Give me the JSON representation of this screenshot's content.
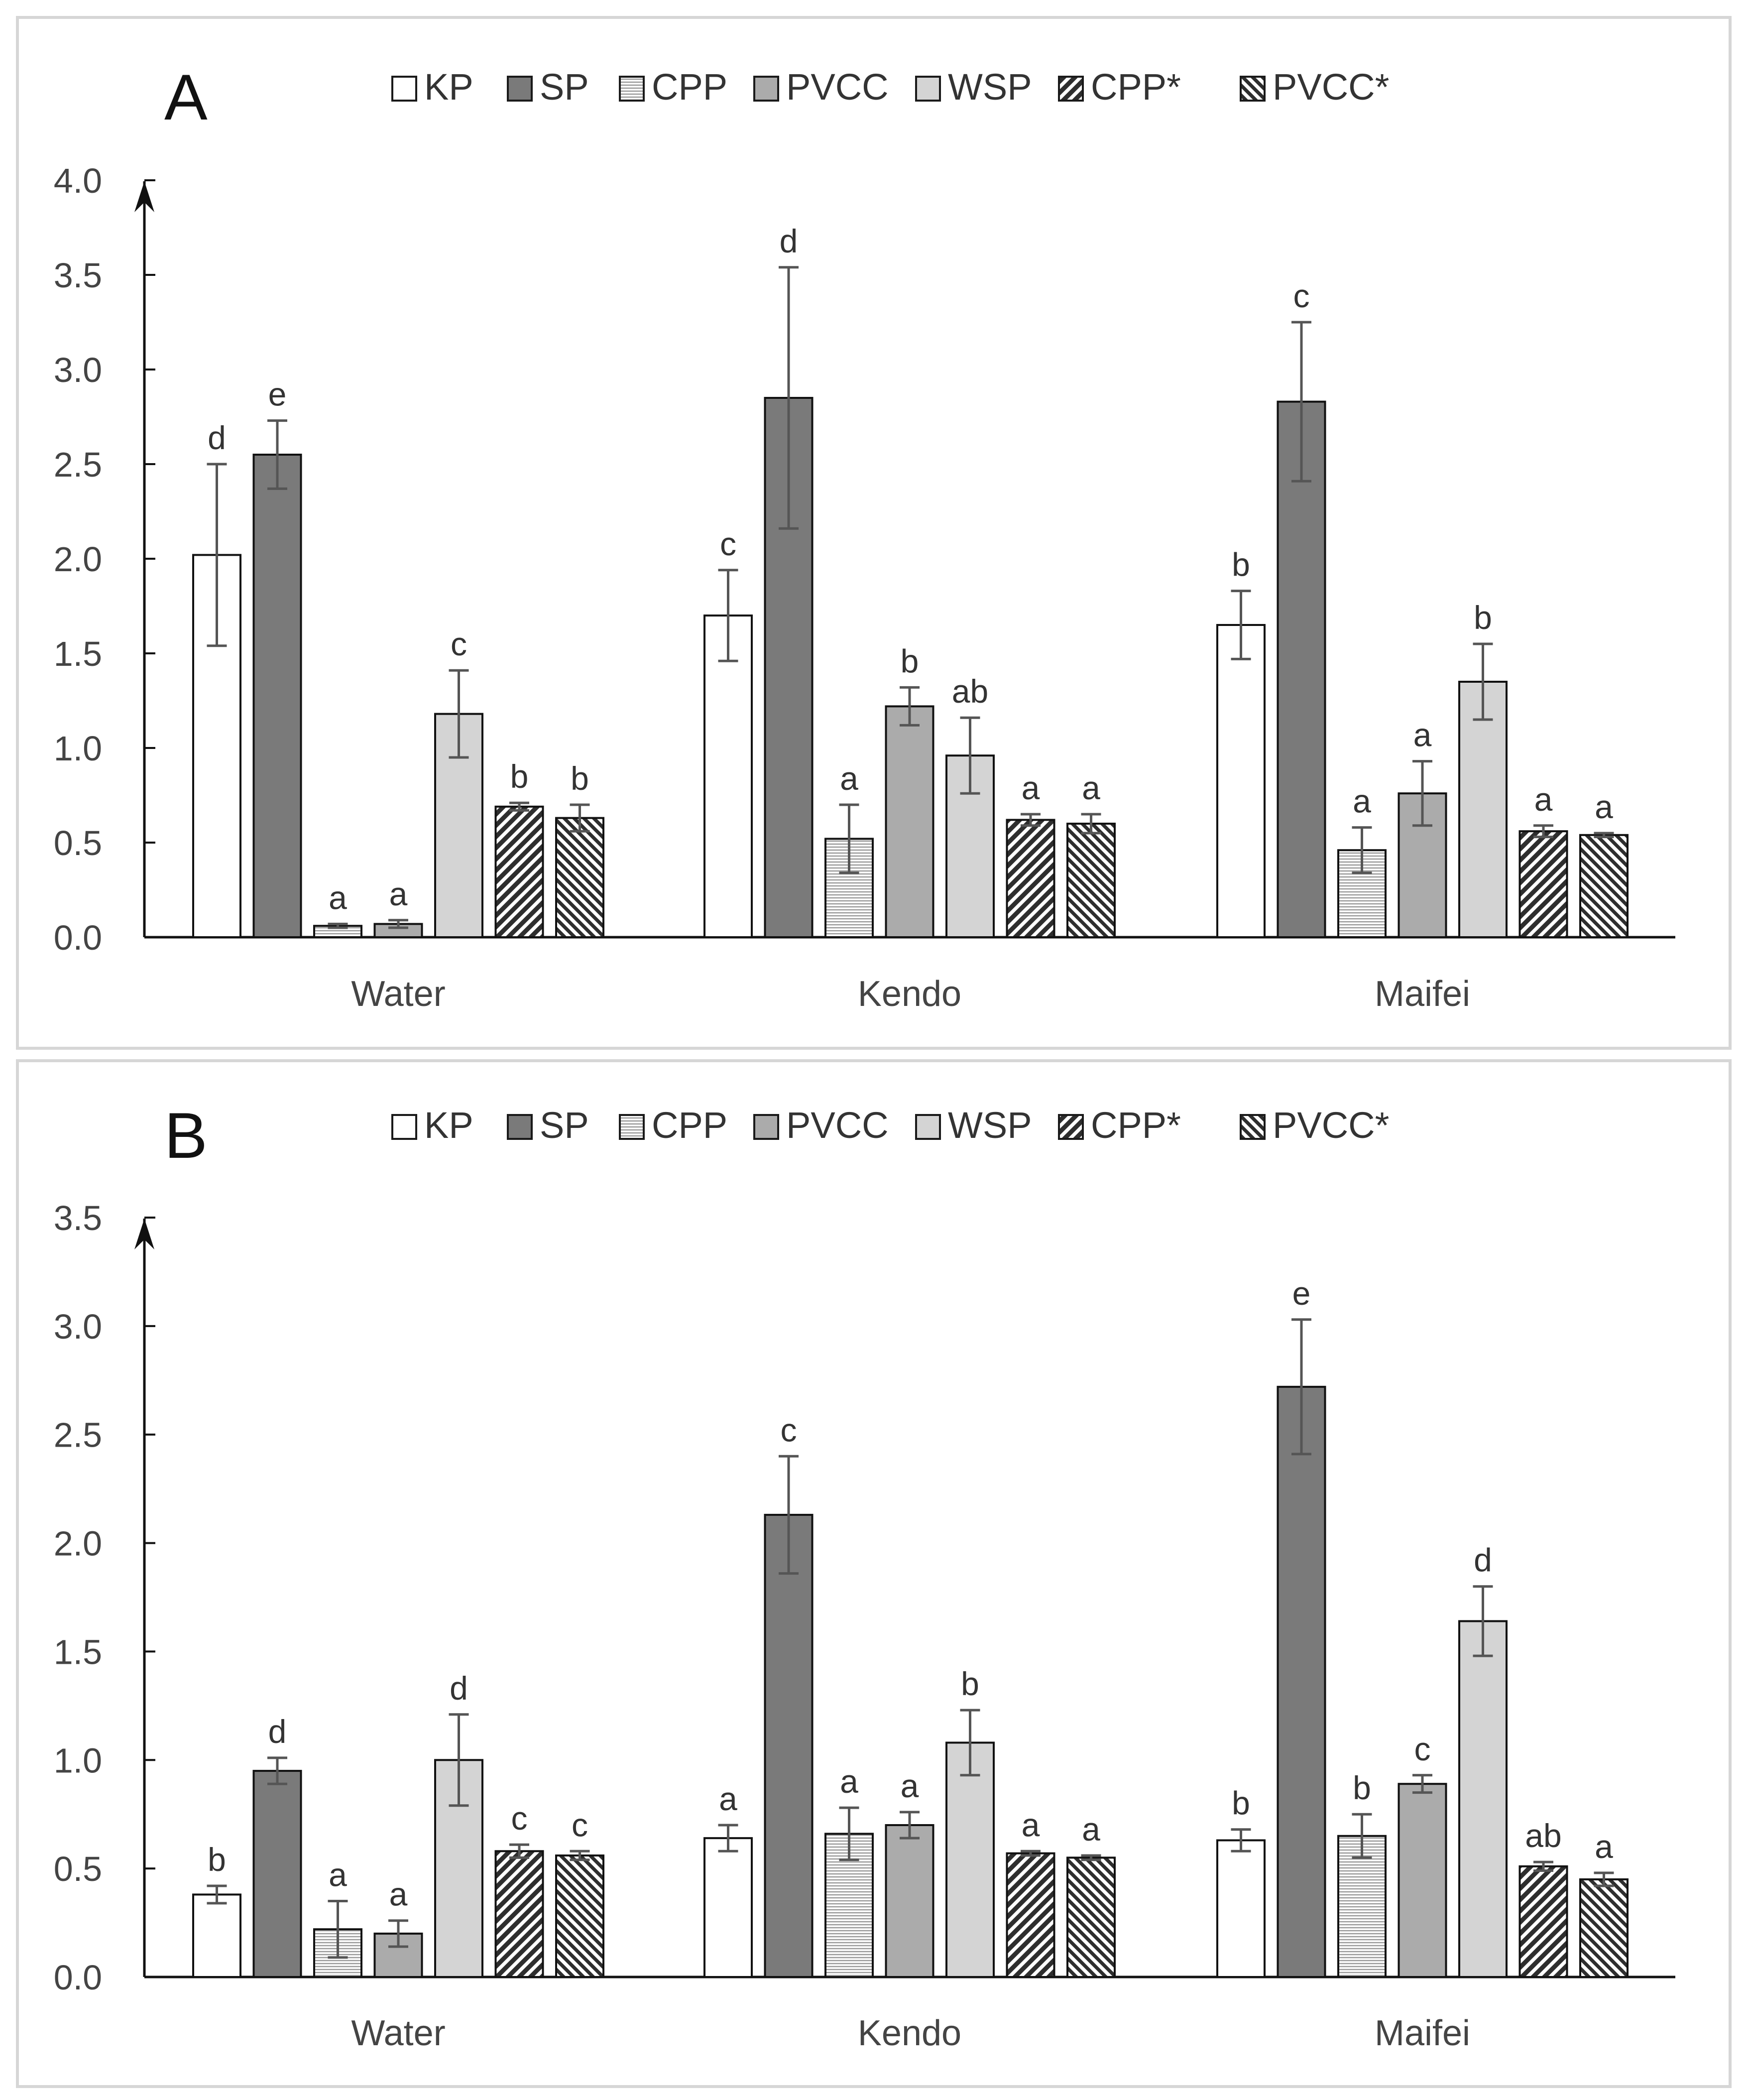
{
  "chart_data": [
    {
      "type": "bar",
      "panel_label": "A",
      "categories": [
        "Water",
        "Kendo",
        "Maifei"
      ],
      "ylim": [
        0,
        4.0
      ],
      "y_ticks": [
        "0.0",
        "0.5",
        "1.0",
        "1.5",
        "2.0",
        "2.5",
        "3.0",
        "3.5",
        "4.0"
      ],
      "legend": [
        "KP",
        "SP",
        "CPP",
        "PVCC",
        "WSP",
        "CPP*",
        "PVCC*"
      ],
      "series": [
        {
          "name": "KP",
          "values": [
            2.02,
            1.7,
            1.65
          ],
          "errors": [
            0.48,
            0.24,
            0.18
          ],
          "letters": [
            "d",
            "c",
            "b"
          ]
        },
        {
          "name": "SP",
          "values": [
            2.55,
            2.85,
            2.83
          ],
          "errors": [
            0.18,
            0.69,
            0.42
          ],
          "letters": [
            "e",
            "d",
            "c"
          ]
        },
        {
          "name": "CPP",
          "values": [
            0.06,
            0.52,
            0.46
          ],
          "errors": [
            0.01,
            0.18,
            0.12
          ],
          "letters": [
            "a",
            "a",
            "a"
          ]
        },
        {
          "name": "PVCC",
          "values": [
            0.07,
            1.22,
            0.76
          ],
          "errors": [
            0.02,
            0.1,
            0.17
          ],
          "letters": [
            "a",
            "b",
            "a"
          ]
        },
        {
          "name": "WSP",
          "values": [
            1.18,
            0.96,
            1.35
          ],
          "errors": [
            0.23,
            0.2,
            0.2
          ],
          "letters": [
            "c",
            "ab",
            "b"
          ]
        },
        {
          "name": "CPP*",
          "values": [
            0.69,
            0.62,
            0.56
          ],
          "errors": [
            0.02,
            0.03,
            0.03
          ],
          "letters": [
            "b",
            "a",
            "a"
          ]
        },
        {
          "name": "PVCC*",
          "values": [
            0.63,
            0.6,
            0.54
          ],
          "errors": [
            0.07,
            0.05,
            0.01
          ],
          "letters": [
            "b",
            "a",
            "a"
          ]
        }
      ]
    },
    {
      "type": "bar",
      "panel_label": "B",
      "categories": [
        "Water",
        "Kendo",
        "Maifei"
      ],
      "ylim": [
        0,
        3.5
      ],
      "y_ticks": [
        "0.0",
        "0.5",
        "1.0",
        "1.5",
        "2.0",
        "2.5",
        "3.0",
        "3.5"
      ],
      "legend": [
        "KP",
        "SP",
        "CPP",
        "PVCC",
        "WSP",
        "CPP*",
        "PVCC*"
      ],
      "series": [
        {
          "name": "KP",
          "values": [
            0.38,
            0.64,
            0.63
          ],
          "errors": [
            0.04,
            0.06,
            0.05
          ],
          "letters": [
            "b",
            "a",
            "b"
          ]
        },
        {
          "name": "SP",
          "values": [
            0.95,
            2.13,
            2.72
          ],
          "errors": [
            0.06,
            0.27,
            0.31
          ],
          "letters": [
            "d",
            "c",
            "e"
          ]
        },
        {
          "name": "CPP",
          "values": [
            0.22,
            0.66,
            0.65
          ],
          "errors": [
            0.13,
            0.12,
            0.1
          ],
          "letters": [
            "a",
            "a",
            "b"
          ]
        },
        {
          "name": "PVCC",
          "values": [
            0.2,
            0.7,
            0.89
          ],
          "errors": [
            0.06,
            0.06,
            0.04
          ],
          "letters": [
            "a",
            "a",
            "c"
          ]
        },
        {
          "name": "WSP",
          "values": [
            1.0,
            1.08,
            1.64
          ],
          "errors": [
            0.21,
            0.15,
            0.16
          ],
          "letters": [
            "d",
            "b",
            "d"
          ]
        },
        {
          "name": "CPP*",
          "values": [
            0.58,
            0.57,
            0.51
          ],
          "errors": [
            0.03,
            0.01,
            0.02
          ],
          "letters": [
            "c",
            "a",
            "ab"
          ]
        },
        {
          "name": "PVCC*",
          "values": [
            0.56,
            0.55,
            0.45
          ],
          "errors": [
            0.02,
            0.01,
            0.03
          ],
          "letters": [
            "c",
            "a",
            "a"
          ]
        }
      ]
    }
  ]
}
